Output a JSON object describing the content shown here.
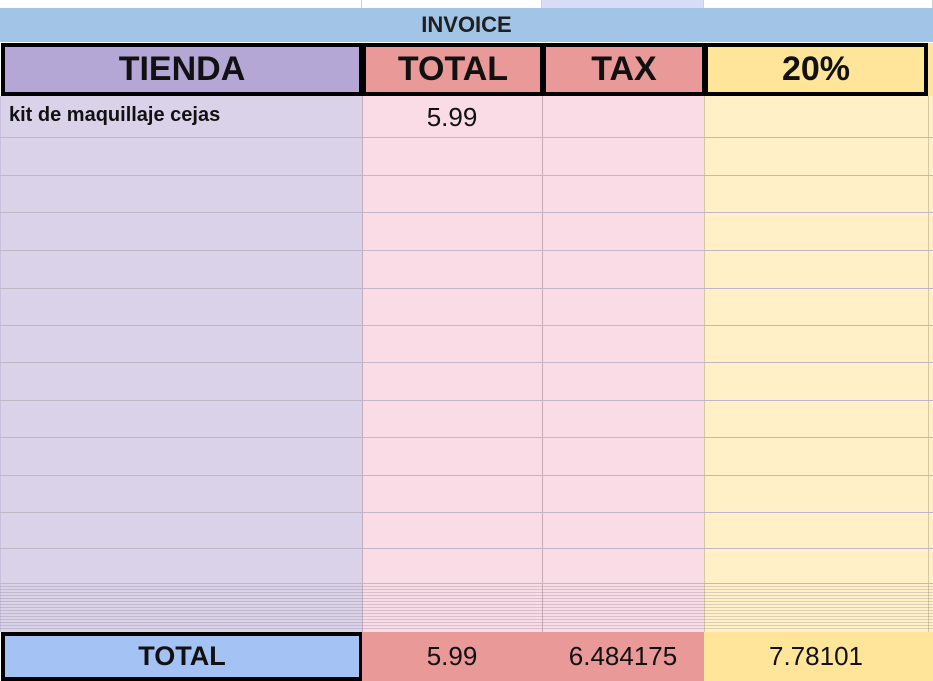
{
  "sheet": {
    "title": "INVOICE",
    "headers": {
      "store": "TIENDA",
      "total": "TOTAL",
      "tax": "TAX",
      "rate": "20%"
    },
    "rows": [
      {
        "store": "kit de maquillaje cejas",
        "total": "5.99",
        "tax": "",
        "rate": ""
      }
    ],
    "footer": {
      "label": "TOTAL",
      "total": "5.99",
      "tax": "6.484175",
      "rate": "7.78101"
    },
    "colors": {
      "title_bar": "#a2c4e6",
      "store_header": "#b4a7d6",
      "store_body": "#d9d2e9",
      "total_header": "#ea9999",
      "total_body": "#f9dce6",
      "rate_header": "#ffe599",
      "rate_body": "#fff0c8",
      "footer_label": "#a4c2f4"
    }
  }
}
